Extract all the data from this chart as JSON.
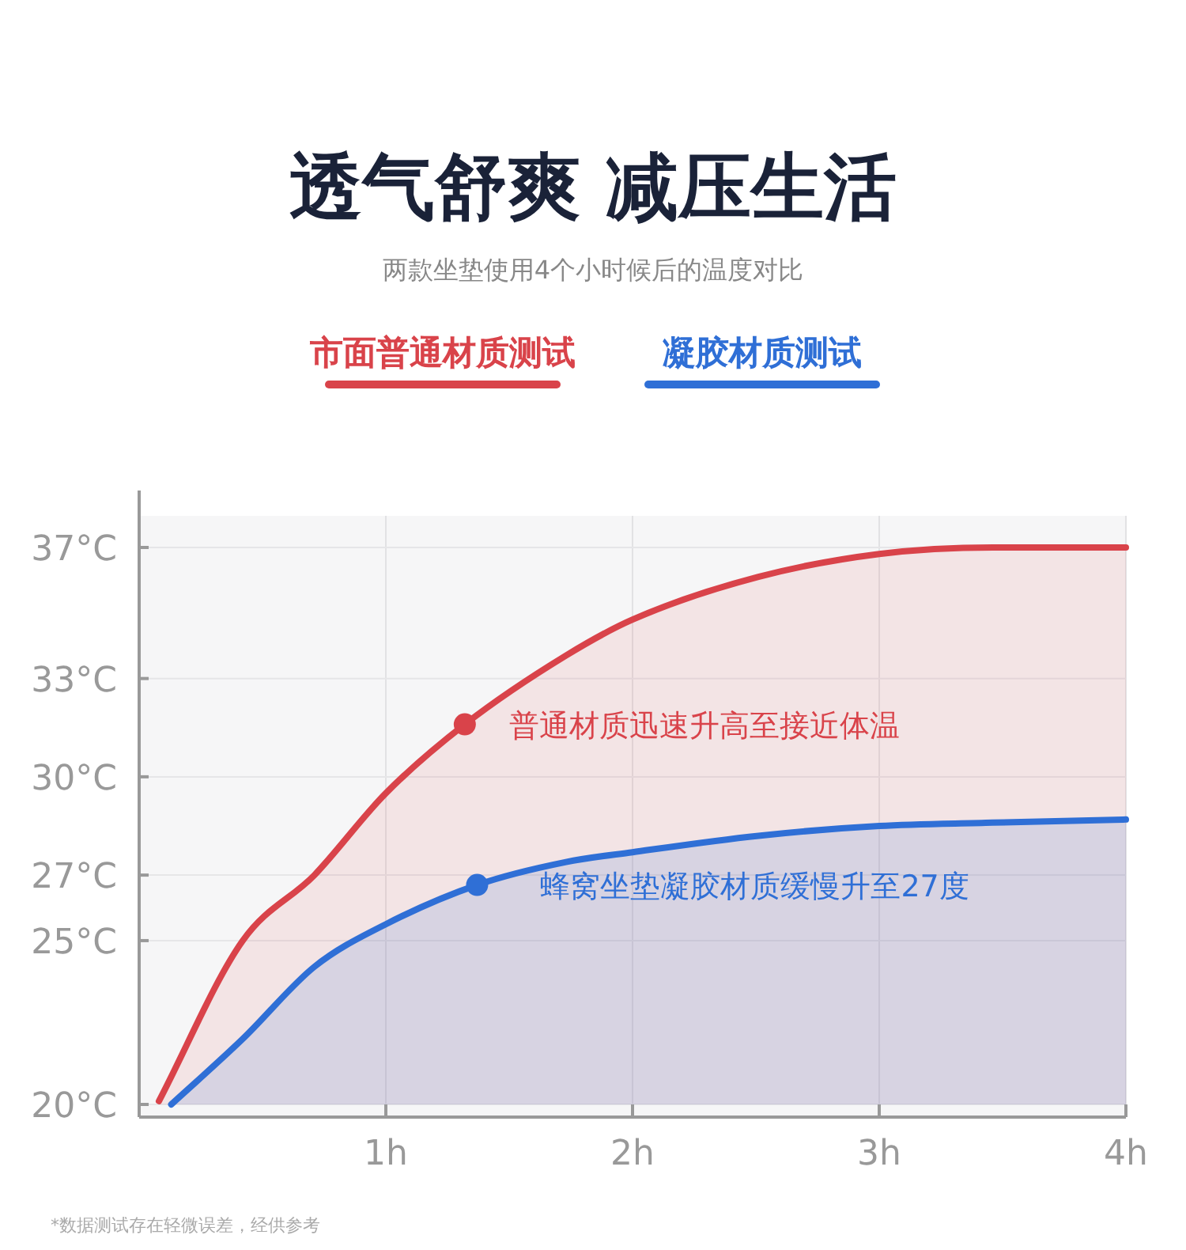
{
  "chart_data": {
    "type": "area",
    "title": "透气舒爽 减压生活",
    "subtitle": "两款坐垫使用4个小时候后的温度对比",
    "legend": "top",
    "grid": true,
    "xlim": [
      0,
      4
    ],
    "xticks": [
      {
        "value": 1,
        "label": "1h"
      },
      {
        "value": 2,
        "label": "2h"
      },
      {
        "value": 3,
        "label": "3h"
      },
      {
        "value": 4,
        "label": "4h"
      }
    ],
    "ylim": [
      20,
      37
    ],
    "yticks": [
      {
        "value": 20,
        "label": "20°C"
      },
      {
        "value": 25,
        "label": "25°C"
      },
      {
        "value": 27,
        "label": "27°C"
      },
      {
        "value": 30,
        "label": "30°C"
      },
      {
        "value": 33,
        "label": "33°C"
      },
      {
        "value": 37,
        "label": "37°C"
      }
    ],
    "series": [
      {
        "name": "市面普通材质测试",
        "color": "#d9434a",
        "x": [
          0.08,
          0.42,
          0.71,
          1.0,
          1.32,
          1.73,
          2.0,
          2.51,
          3.0,
          3.46,
          4.0
        ],
        "values": [
          20.1,
          25,
          27,
          29.5,
          31.6,
          33.7,
          34.8,
          36.1,
          36.8,
          37,
          37
        ]
      },
      {
        "name": "凝胶材质测试",
        "color": "#2f6fd6",
        "x": [
          0.13,
          0.42,
          0.71,
          1.0,
          1.37,
          1.73,
          2.0,
          2.51,
          3.0,
          3.46,
          4.0
        ],
        "values": [
          20,
          22,
          24.2,
          25.5,
          26.7,
          27.4,
          27.7,
          28.2,
          28.5,
          28.6,
          28.7
        ]
      }
    ],
    "annotations": [
      {
        "text": "普通材质迅速升高至接近体温",
        "x": 1.32,
        "y": 31.6
      },
      {
        "text": "蜂窝坐垫凝胶材质缓慢升至27度",
        "x": 1.37,
        "y": 26.7
      },
      "*数据测试存在轻微误差，经供参考"
    ]
  }
}
